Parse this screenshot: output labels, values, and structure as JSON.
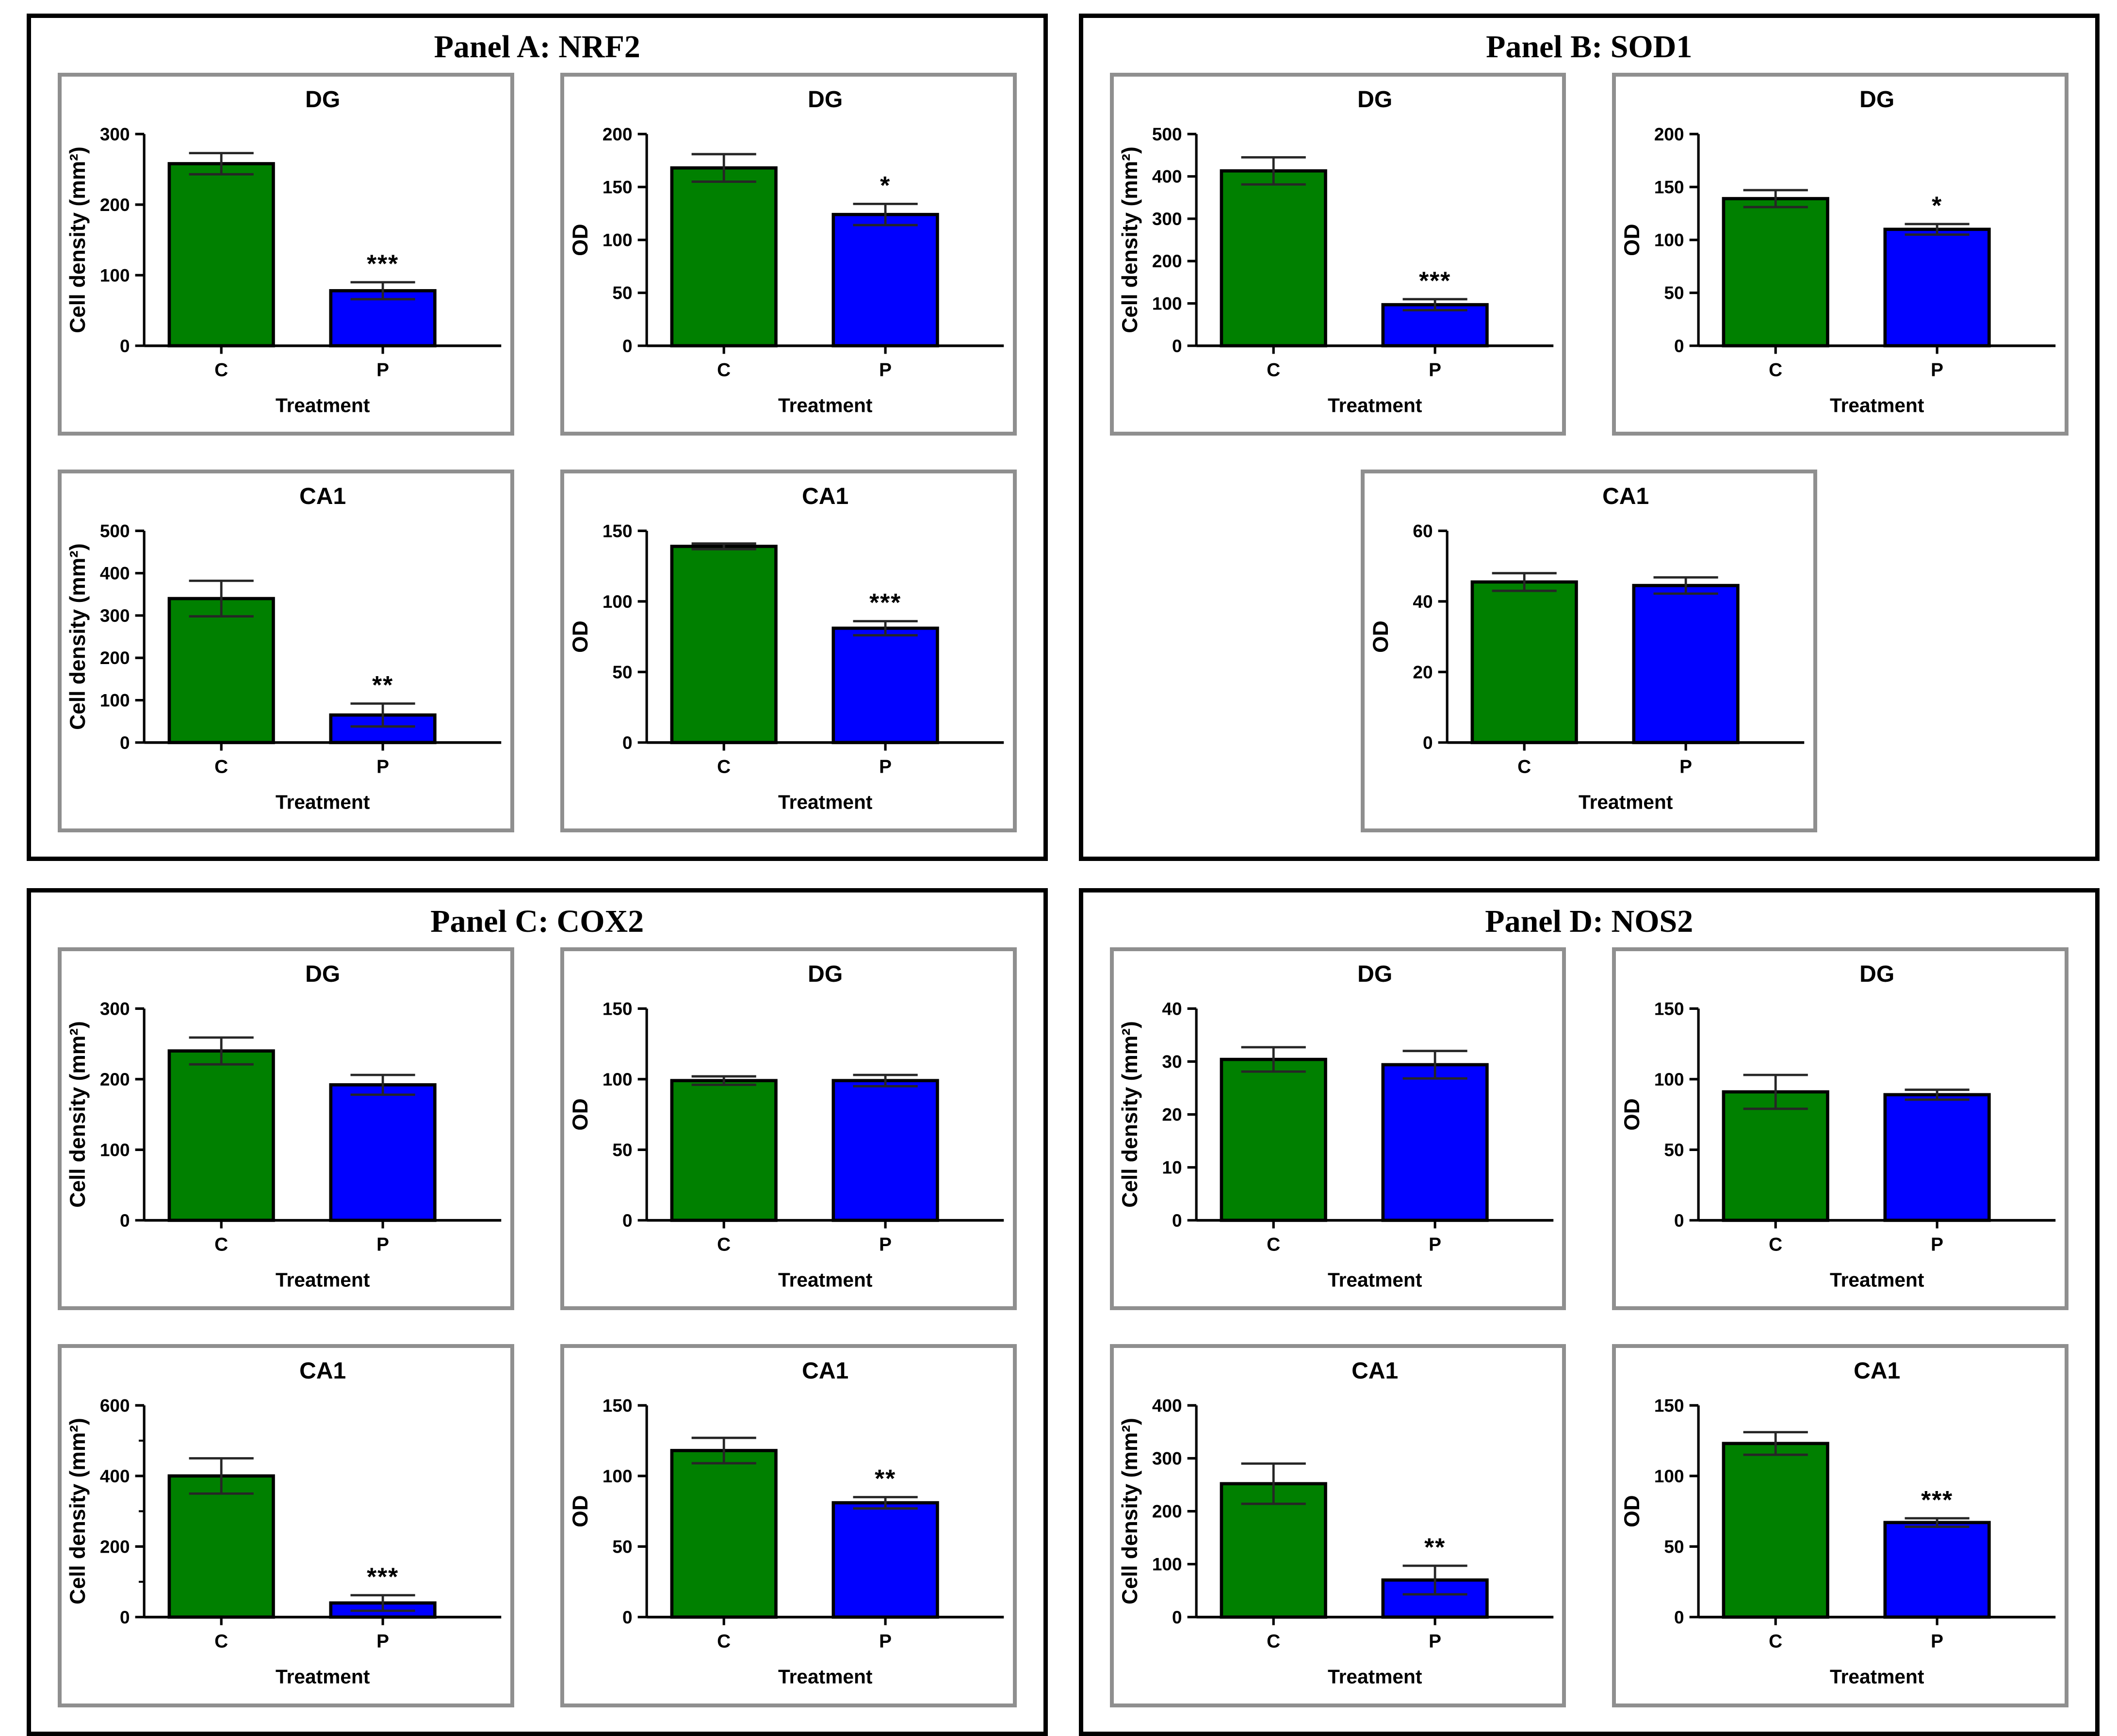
{
  "figure_title": "Immunohistochemistry bar charts, four marker panels",
  "colors": {
    "control_bar": "#008000",
    "treated_bar": "#0000ff",
    "bar_outline": "#000000",
    "axis": "#000000",
    "whisker": "#262626",
    "panel_border": "#000000",
    "subplot_border": "#8f8f8f",
    "background": "#ffffff"
  },
  "chart_data": {
    "type": "bar",
    "categories": [
      "C",
      "P"
    ],
    "xlabel": "Treatment",
    "series_colors": {
      "C": "#008000",
      "P": "#0000ff"
    },
    "grid": "off",
    "error_bars": "symmetric, capped T-bars",
    "panels": [
      {
        "panel_title": "Panel A: NRF2",
        "layout": "2x2",
        "charts": [
          {
            "title": "DG",
            "ylabel": "Cell density (mm²)",
            "ylim": [
              0,
              300
            ],
            "yticks": [
              0,
              100,
              200,
              300
            ],
            "values": {
              "C": 258,
              "P": 78
            },
            "errors": {
              "C": 15,
              "P": 12
            },
            "sig": {
              "P": "***"
            }
          },
          {
            "title": "DG",
            "ylabel": "OD",
            "ylim": [
              0,
              200
            ],
            "yticks": [
              0,
              50,
              100,
              150,
              200
            ],
            "values": {
              "C": 168,
              "P": 124
            },
            "errors": {
              "C": 13,
              "P": 10
            },
            "sig": {
              "P": "*"
            }
          },
          {
            "title": "CA1",
            "ylabel": "Cell density (mm²)",
            "ylim": [
              0,
              500
            ],
            "yticks": [
              0,
              100,
              200,
              300,
              400,
              500
            ],
            "values": {
              "C": 340,
              "P": 65
            },
            "errors": {
              "C": 42,
              "P": 27
            },
            "sig": {
              "P": "**"
            }
          },
          {
            "title": "CA1",
            "ylabel": "OD",
            "ylim": [
              0,
              150
            ],
            "yticks": [
              0,
              50,
              100,
              150
            ],
            "values": {
              "C": 139,
              "P": 81
            },
            "errors": {
              "C": 2,
              "P": 5
            },
            "sig": {
              "P": "***"
            }
          }
        ]
      },
      {
        "panel_title": "Panel B: SOD1",
        "layout": "2-top-1-centered",
        "charts": [
          {
            "title": "DG",
            "ylabel": "Cell density (mm²)",
            "ylim": [
              0,
              500
            ],
            "yticks": [
              0,
              100,
              200,
              300,
              400,
              500
            ],
            "values": {
              "C": 413,
              "P": 97
            },
            "errors": {
              "C": 32,
              "P": 13
            },
            "sig": {
              "P": "***"
            }
          },
          {
            "title": "DG",
            "ylabel": "OD",
            "ylim": [
              0,
              200
            ],
            "yticks": [
              0,
              50,
              100,
              150,
              200
            ],
            "values": {
              "C": 139,
              "P": 110
            },
            "errors": {
              "C": 8,
              "P": 5
            },
            "sig": {
              "P": "*"
            }
          },
          {
            "title": "CA1",
            "ylabel": "OD",
            "ylim": [
              0,
              60
            ],
            "yticks": [
              0,
              20,
              40,
              60
            ],
            "values": {
              "C": 45.5,
              "P": 44.5
            },
            "errors": {
              "C": 2.5,
              "P": 2.3
            },
            "sig": {}
          }
        ]
      },
      {
        "panel_title": "Panel C: COX2",
        "layout": "2x2",
        "charts": [
          {
            "title": "DG",
            "ylabel": "Cell density (mm²)",
            "ylim": [
              0,
              300
            ],
            "yticks": [
              0,
              100,
              200,
              300
            ],
            "values": {
              "C": 240,
              "P": 192
            },
            "errors": {
              "C": 19,
              "P": 14
            },
            "sig": {}
          },
          {
            "title": "DG",
            "ylabel": "OD",
            "ylim": [
              0,
              150
            ],
            "yticks": [
              0,
              50,
              100,
              150
            ],
            "values": {
              "C": 99,
              "P": 99
            },
            "errors": {
              "C": 3,
              "P": 4
            },
            "sig": {}
          },
          {
            "title": "CA1",
            "ylabel": "Cell density (mm²)",
            "ylim": [
              0,
              600
            ],
            "yticks": [
              0,
              200,
              400,
              600
            ],
            "yminorticks": [
              100,
              300,
              500
            ],
            "values": {
              "C": 400,
              "P": 40
            },
            "errors": {
              "C": 50,
              "P": 22
            },
            "sig": {
              "P": "***"
            }
          },
          {
            "title": "CA1",
            "ylabel": "OD",
            "ylim": [
              0,
              150
            ],
            "yticks": [
              0,
              50,
              100,
              150
            ],
            "values": {
              "C": 118,
              "P": 81
            },
            "errors": {
              "C": 9,
              "P": 4
            },
            "sig": {
              "P": "**"
            }
          }
        ]
      },
      {
        "panel_title": "Panel D: NOS2",
        "layout": "2x2",
        "charts": [
          {
            "title": "DG",
            "ylabel": "Cell density (mm²)",
            "ylim": [
              0,
              40
            ],
            "yticks": [
              0,
              10,
              20,
              30,
              40
            ],
            "values": {
              "C": 30.4,
              "P": 29.4
            },
            "errors": {
              "C": 2.3,
              "P": 2.6
            },
            "sig": {}
          },
          {
            "title": "DG",
            "ylabel": "OD",
            "ylim": [
              0,
              150
            ],
            "yticks": [
              0,
              50,
              100,
              150
            ],
            "values": {
              "C": 91,
              "P": 89
            },
            "errors": {
              "C": 12,
              "P": 3.5
            },
            "sig": {}
          },
          {
            "title": "CA1",
            "ylabel": "Cell density (mm²)",
            "ylim": [
              0,
              400
            ],
            "yticks": [
              0,
              100,
              200,
              300,
              400
            ],
            "values": {
              "C": 252,
              "P": 70
            },
            "errors": {
              "C": 38,
              "P": 27
            },
            "sig": {
              "P": "**"
            }
          },
          {
            "title": "CA1",
            "ylabel": "OD",
            "ylim": [
              0,
              150
            ],
            "yticks": [
              0,
              50,
              100,
              150
            ],
            "values": {
              "C": 123,
              "P": 67
            },
            "errors": {
              "C": 8,
              "P": 3
            },
            "sig": {
              "P": "***"
            }
          }
        ]
      }
    ]
  }
}
